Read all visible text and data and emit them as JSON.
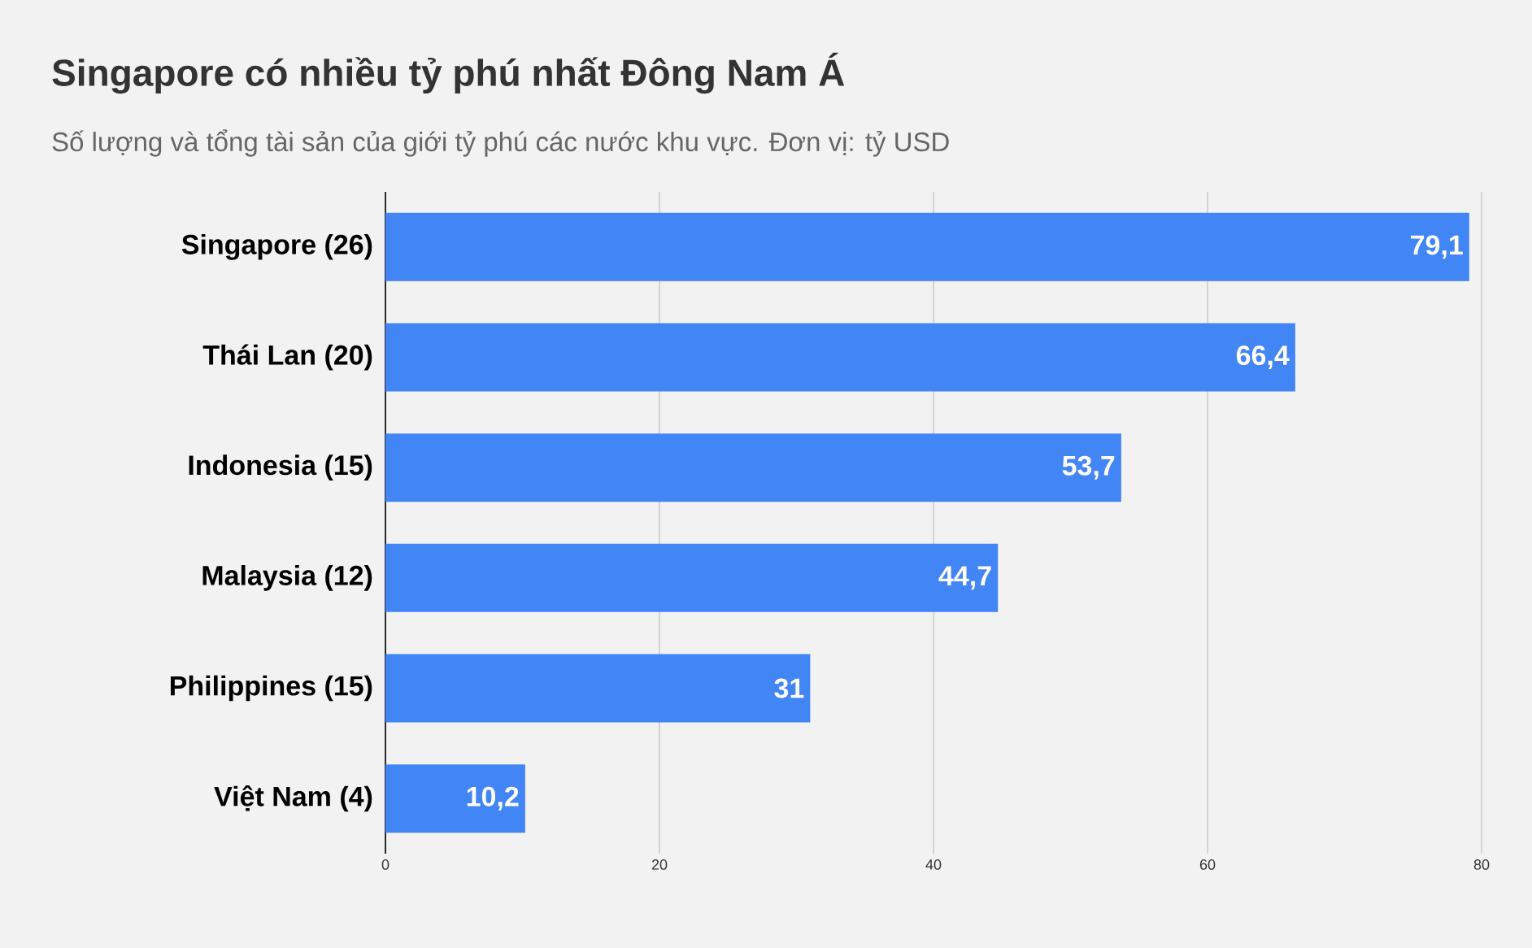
{
  "chart_data": {
    "type": "bar",
    "orientation": "horizontal",
    "title": "Singapore có nhiều tỷ phú nhất Đông Nam Á",
    "subtitle": "Số lượng và tổng tài sản của giới tỷ phú các nước khu vực. Đơn vị: tỷ USD",
    "categories": [
      "Singapore (26)",
      "Thái Lan (20)",
      "Indonesia (15)",
      "Malaysia (12)",
      "Philippines (15)",
      "Việt Nam (4)"
    ],
    "values": [
      79.1,
      66.4,
      53.7,
      44.7,
      31,
      10.2
    ],
    "value_labels": [
      "79,1",
      "66,4",
      "53,7",
      "44,7",
      "31",
      "10,2"
    ],
    "color": "#4285f4",
    "xlim": [
      0,
      80
    ],
    "xticks": [
      0,
      20,
      40,
      60,
      80
    ],
    "grid": "x"
  }
}
